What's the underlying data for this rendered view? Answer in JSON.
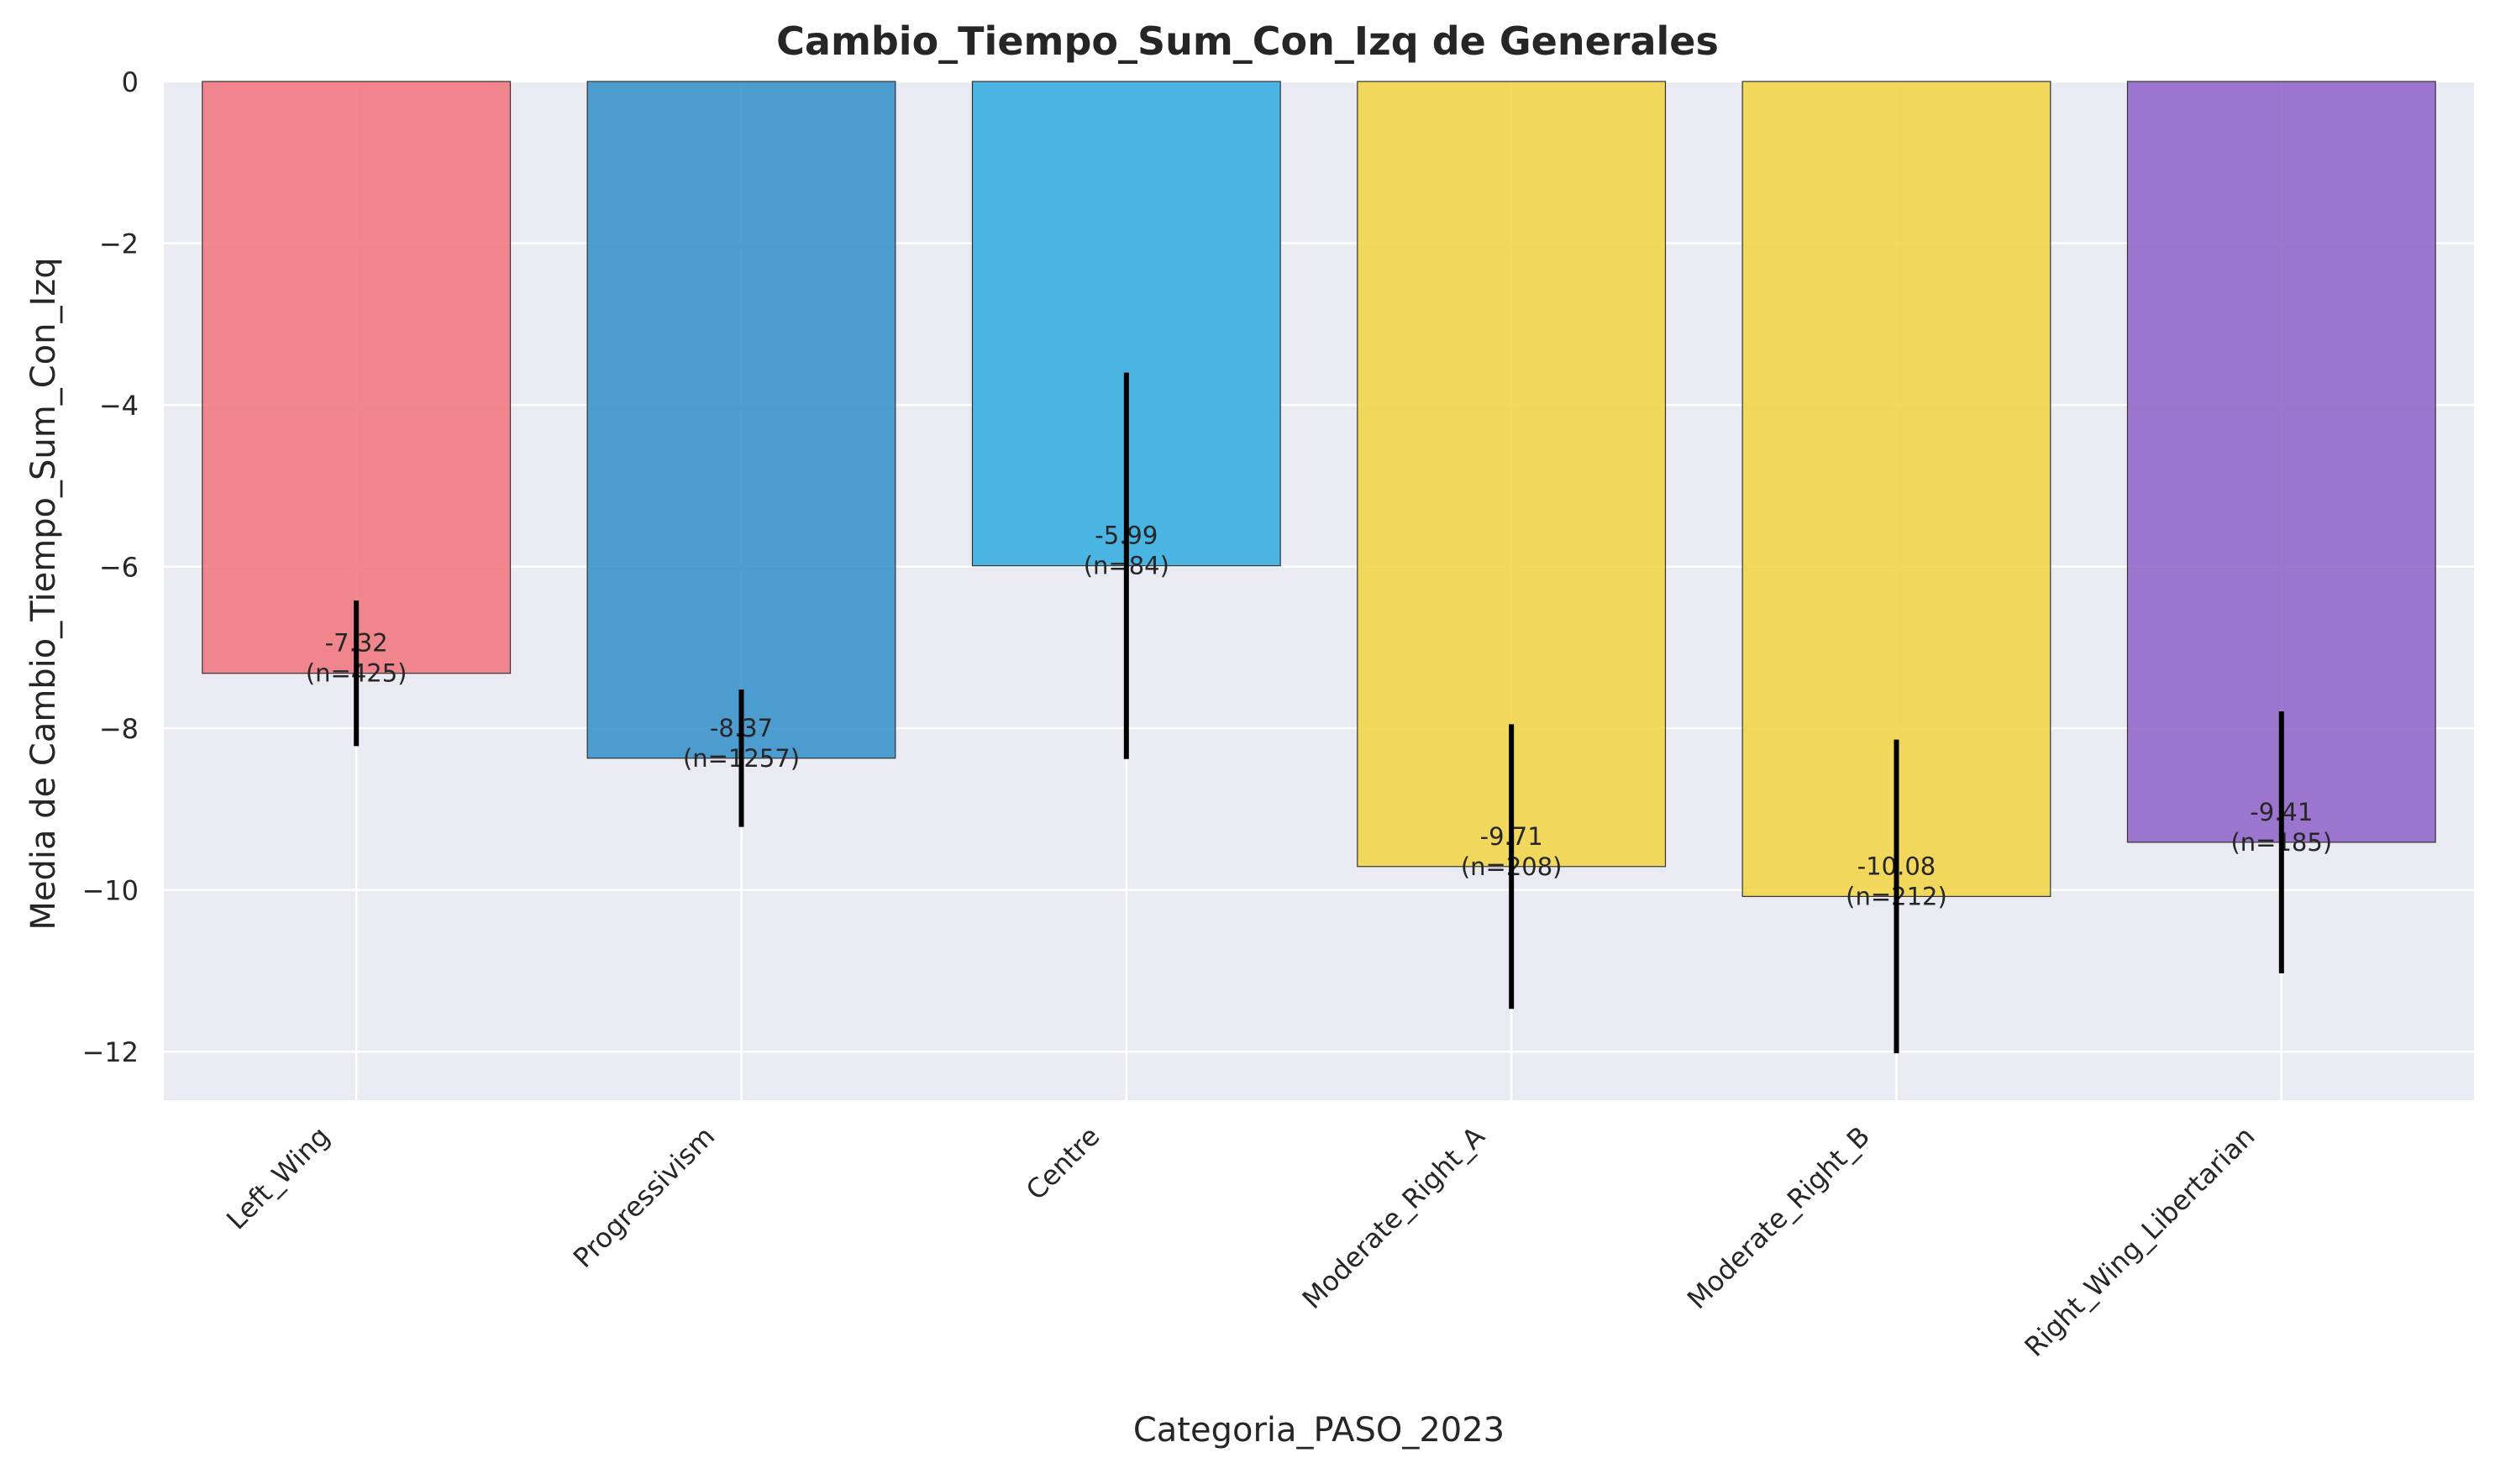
{
  "chart_data": {
    "type": "bar",
    "title": "Cambio_Tiempo_Sum_Con_Izq de Generales",
    "xlabel": "Categoria_PASO_2023",
    "ylabel": "Media de Cambio_Tiempo_Sum_Con_Izq",
    "categories": [
      "Left_Wing",
      "Progressivism",
      "Centre",
      "Moderate_Right_A",
      "Moderate_Right_B",
      "Right_Wing_Libertarian"
    ],
    "values": [
      -7.32,
      -8.37,
      -5.99,
      -9.71,
      -10.08,
      -9.41
    ],
    "error_low": [
      -8.22,
      -9.22,
      -8.38,
      -11.47,
      -12.02,
      -11.03
    ],
    "error_high": [
      -6.42,
      -7.52,
      -3.6,
      -7.95,
      -8.14,
      -7.79
    ],
    "bar_labels": [
      [
        "-7.32",
        "(n=425)"
      ],
      [
        "-8.37",
        "(n=1257)"
      ],
      [
        "-5.99",
        "(n=84)"
      ],
      [
        "-9.71",
        "(n=208)"
      ],
      [
        "-10.08",
        "(n=212)"
      ],
      [
        "-9.41",
        "(n=185)"
      ]
    ],
    "colors": [
      "#f17a82",
      "#3c94cc",
      "#38aee0",
      "#f2d54a",
      "#f2d54a",
      "#9468ca"
    ],
    "ylim": [
      -12.6,
      0
    ],
    "yticks": [
      0,
      -2,
      -4,
      -6,
      -8,
      -10,
      -12
    ],
    "ytick_labels": [
      "0",
      "−2",
      "−4",
      "−6",
      "−8",
      "−10",
      "−12"
    ],
    "grid": true,
    "background_color": "#eaeaf2"
  }
}
